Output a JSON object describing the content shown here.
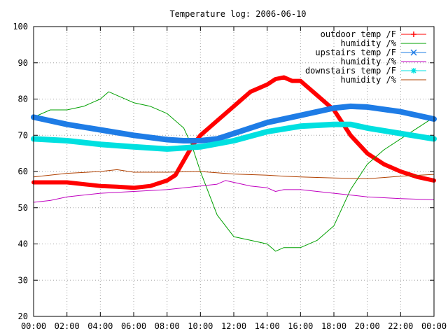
{
  "chart_data": {
    "type": "line",
    "title": "Temperature log: 2006-06-10",
    "xlabel": "",
    "ylabel": "",
    "xlim": [
      0,
      24
    ],
    "ylim": [
      20,
      100
    ],
    "grid": true,
    "legend_placement": "top-right",
    "x_ticks": [
      "00:00",
      "02:00",
      "04:00",
      "06:00",
      "08:00",
      "10:00",
      "12:00",
      "14:00",
      "16:00",
      "18:00",
      "20:00",
      "22:00",
      "00:00"
    ],
    "y_ticks": [
      20,
      30,
      40,
      50,
      60,
      70,
      80,
      90,
      100
    ],
    "series": [
      {
        "name": "outdoor temp /F",
        "color": "#ff0000",
        "marker": "plus",
        "x": [
          0,
          1,
          2,
          3,
          4,
          5,
          6,
          7,
          8,
          8.5,
          9,
          9.5,
          10,
          10.5,
          11,
          12,
          13,
          14,
          14.5,
          15,
          15.5,
          16,
          16.5,
          17,
          18,
          19,
          20,
          21,
          22,
          23,
          24
        ],
        "y": [
          57,
          57,
          57,
          56.5,
          56,
          55.8,
          55.5,
          56,
          57.5,
          59,
          63,
          67,
          70,
          72,
          74,
          78,
          82,
          84,
          85.5,
          86,
          85,
          85,
          83,
          81,
          77,
          70,
          65,
          62,
          60,
          58.5,
          57.5
        ]
      },
      {
        "name": "humidity /%",
        "color": "#00a000",
        "marker": "none",
        "x": [
          0,
          1,
          2,
          3,
          3.5,
          4,
          4.5,
          5,
          6,
          7,
          8,
          9,
          9.5,
          10,
          11,
          12,
          13,
          14,
          14.5,
          15,
          16,
          17,
          18,
          19,
          20,
          21,
          22,
          23,
          24
        ],
        "y": [
          75,
          77,
          77,
          78,
          79,
          80,
          82,
          81,
          79,
          78,
          76,
          72,
          67,
          60,
          48,
          42,
          41,
          40,
          38,
          39,
          39,
          41,
          45,
          55,
          62,
          66,
          69,
          72,
          75
        ]
      },
      {
        "name": "upstairs temp /F",
        "color": "#1e7ce6",
        "marker": "cross",
        "x": [
          0,
          2,
          4,
          6,
          8,
          9,
          10,
          11,
          12,
          14,
          16,
          18,
          19,
          20,
          22,
          24
        ],
        "y": [
          75,
          73,
          71.5,
          70,
          68.8,
          68.5,
          68.5,
          69,
          70.5,
          73.5,
          75.5,
          77.5,
          78,
          77.8,
          76.5,
          74.5
        ]
      },
      {
        "name": "humidity /%",
        "color": "#c000c0",
        "marker": "none",
        "x": [
          0,
          1,
          2,
          4,
          6,
          8,
          10,
          11,
          11.5,
          12,
          13,
          14,
          14.5,
          15,
          16,
          18,
          20,
          22,
          24
        ],
        "y": [
          51.5,
          52,
          53,
          54,
          54.5,
          55,
          56,
          56.5,
          57.5,
          57,
          56,
          55.5,
          54.5,
          55,
          55,
          54,
          53,
          52.5,
          52.2
        ]
      },
      {
        "name": "downstairs temp /F",
        "color": "#00e0e0",
        "marker": "star",
        "x": [
          0,
          2,
          4,
          6,
          8,
          10,
          12,
          14,
          16,
          18,
          19,
          20,
          22,
          24
        ],
        "y": [
          69,
          68.5,
          67.5,
          66.8,
          66.2,
          66.8,
          68.5,
          71,
          72.5,
          73,
          73,
          72,
          70.5,
          69
        ]
      },
      {
        "name": "humidity /%",
        "color": "#b04000",
        "marker": "none",
        "x": [
          0,
          2,
          4,
          5,
          6,
          8,
          10,
          12,
          14,
          15,
          16,
          18,
          20,
          22,
          24
        ],
        "y": [
          58.5,
          59.5,
          60,
          60.5,
          59.8,
          59.8,
          60,
          59.3,
          59,
          58.7,
          58.5,
          58.2,
          58,
          58.7,
          59.2
        ]
      }
    ]
  }
}
